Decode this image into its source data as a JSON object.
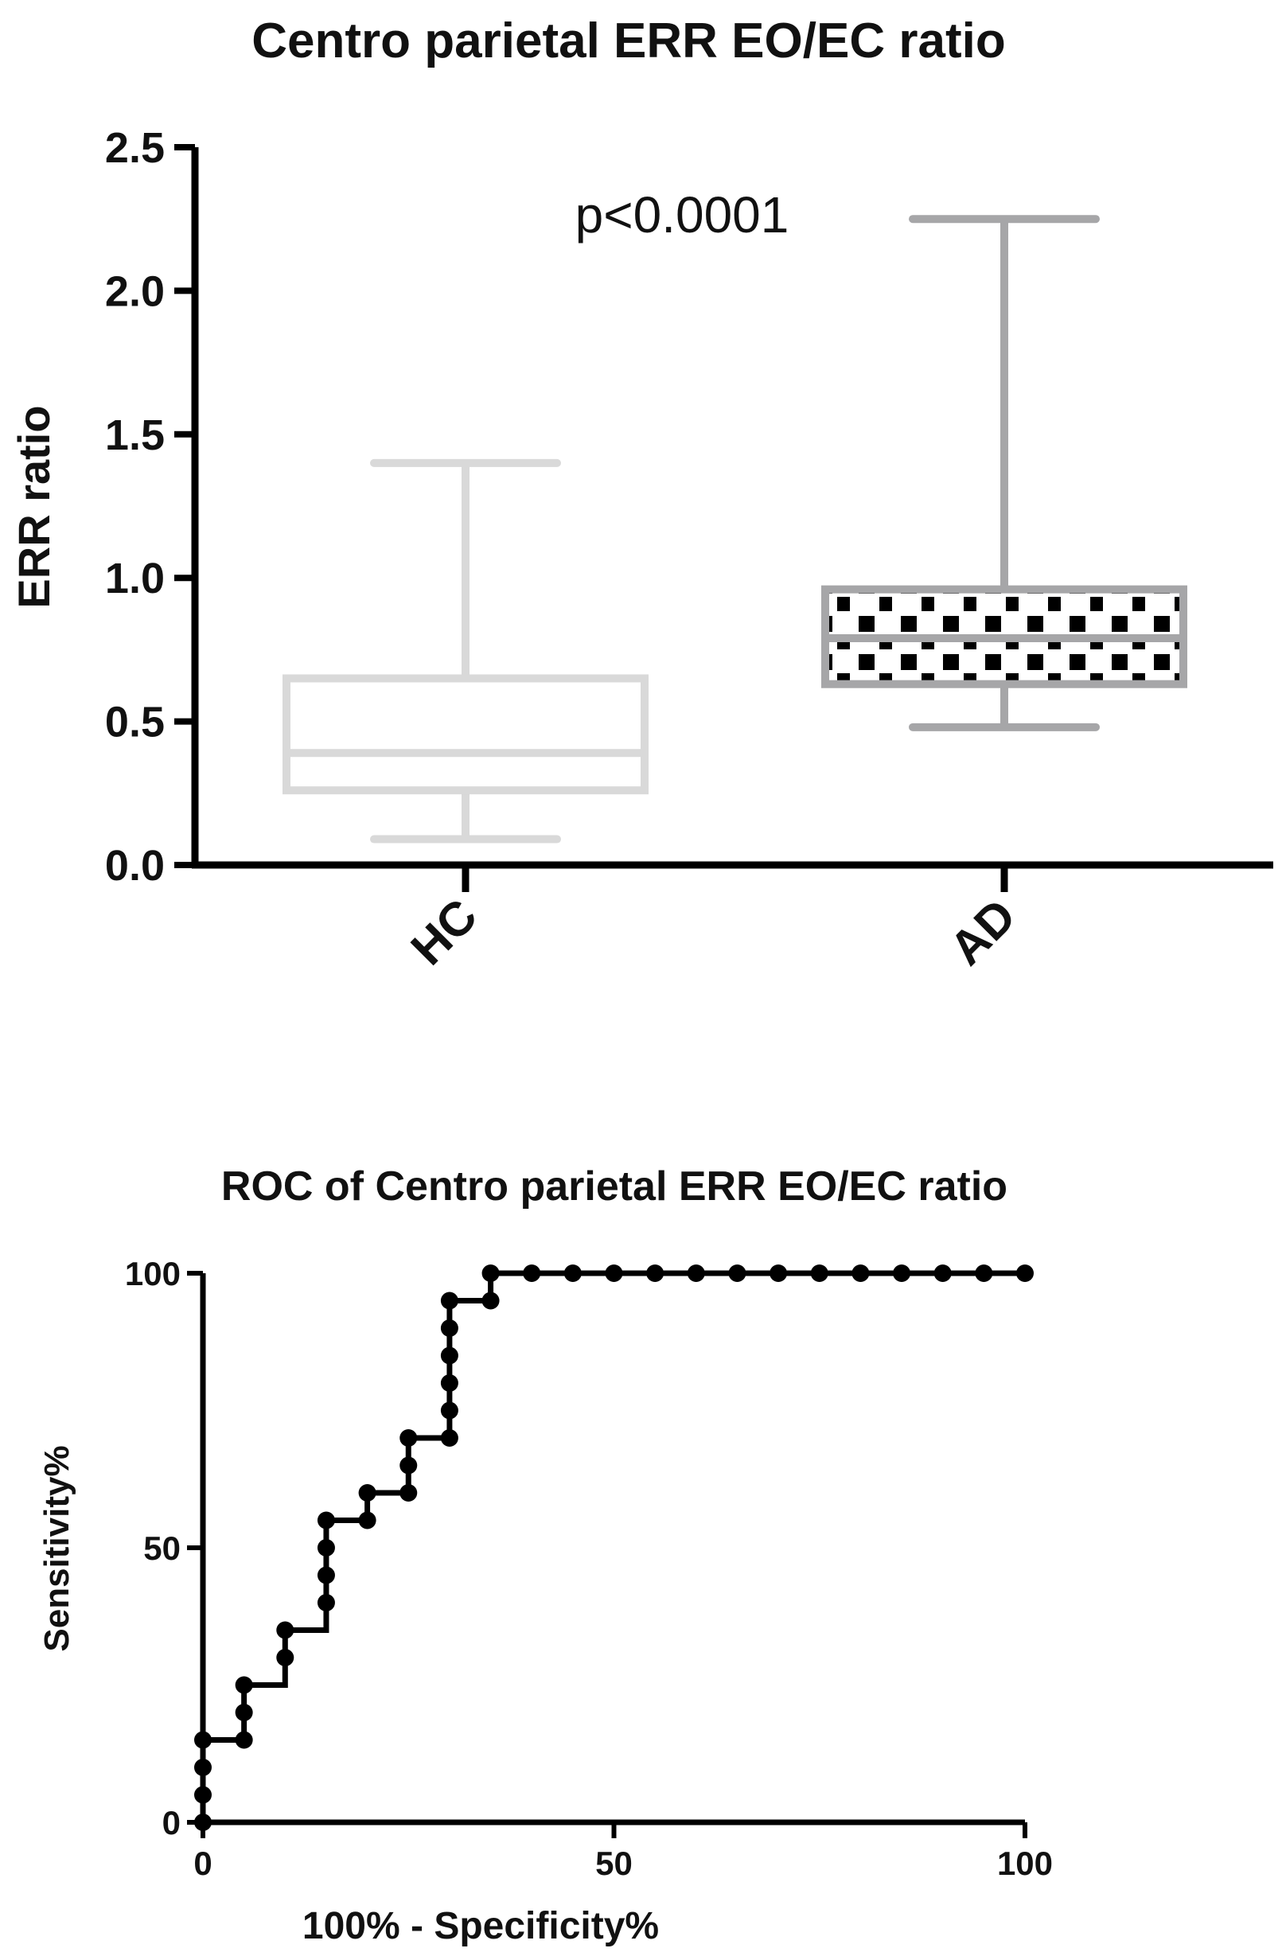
{
  "chart_data": [
    {
      "type": "boxplot",
      "title": "Centro parietal  ERR EO/EC ratio",
      "xlabel": "",
      "ylabel": "ERR ratio",
      "ylim": [
        0,
        2.5
      ],
      "yticks": [
        "0.0",
        "0.5",
        "1.0",
        "1.5",
        "2.0",
        "2.5"
      ],
      "categories": [
        "HC",
        "AD"
      ],
      "annotation": "p<0.0001",
      "boxes": [
        {
          "name": "HC",
          "min": 0.09,
          "q1": 0.26,
          "median": 0.39,
          "q3": 0.65,
          "max": 1.4,
          "color": "#d9d9d9",
          "fill": "none"
        },
        {
          "name": "AD",
          "min": 0.48,
          "q1": 0.63,
          "median": 0.79,
          "q3": 0.96,
          "max": 2.25,
          "color": "#a6a6a8",
          "fill": "checkerboard"
        }
      ]
    },
    {
      "type": "line",
      "title": "ROC of Centro parietal  ERR EO/EC ratio",
      "xlabel": "100% - Specificity%",
      "ylabel": "Sensitivity%",
      "xlim": [
        0,
        100
      ],
      "ylim": [
        0,
        100
      ],
      "xticks": [
        "0",
        "50",
        "100"
      ],
      "yticks": [
        "0",
        "50",
        "100"
      ],
      "step": true,
      "series": [
        {
          "name": "ROC",
          "x": [
            0,
            0,
            0,
            0,
            5,
            5,
            5,
            10,
            10,
            15,
            15,
            15,
            15,
            20,
            20,
            25,
            25,
            25,
            30,
            30,
            30,
            30,
            30,
            30,
            35,
            35,
            40,
            45,
            50,
            55,
            60,
            65,
            70,
            75,
            80,
            85,
            90,
            95,
            100
          ],
          "y": [
            0,
            5,
            10,
            15,
            15,
            20,
            25,
            30,
            35,
            40,
            45,
            50,
            55,
            55,
            60,
            60,
            65,
            70,
            70,
            75,
            80,
            85,
            90,
            95,
            95,
            100,
            100,
            100,
            100,
            100,
            100,
            100,
            100,
            100,
            100,
            100,
            100,
            100,
            100
          ]
        }
      ]
    }
  ]
}
